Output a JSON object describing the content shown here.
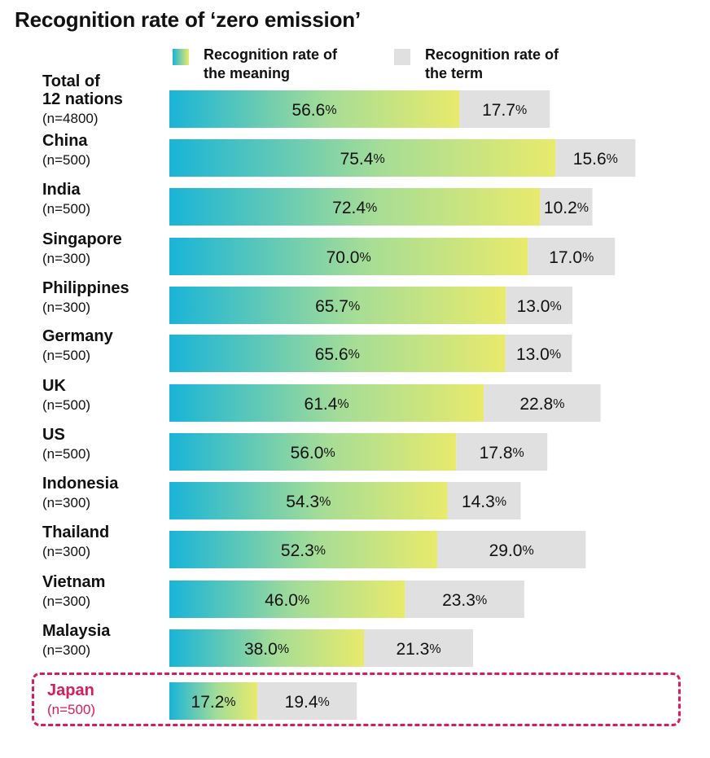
{
  "chart_data": {
    "type": "bar",
    "orientation": "horizontal",
    "stacked": true,
    "title": "Recognition rate of ‘zero emission’",
    "xlabel": "",
    "ylabel": "",
    "xlim": [
      0,
      100
    ],
    "grid": false,
    "legend_position": "top",
    "categories": [
      {
        "name": "Total of 12 nations",
        "lines": [
          "Total of",
          "12 nations"
        ],
        "n": "(n=4800)"
      },
      {
        "name": "China",
        "lines": [
          "China"
        ],
        "n": "(n=500)"
      },
      {
        "name": "India",
        "lines": [
          "India"
        ],
        "n": "(n=500)"
      },
      {
        "name": "Singapore",
        "lines": [
          "Singapore"
        ],
        "n": "(n=300)"
      },
      {
        "name": "Philippines",
        "lines": [
          "Philippines"
        ],
        "n": "(n=300)"
      },
      {
        "name": "Germany",
        "lines": [
          "Germany"
        ],
        "n": "(n=500)"
      },
      {
        "name": "UK",
        "lines": [
          "UK"
        ],
        "n": "(n=500)"
      },
      {
        "name": "US",
        "lines": [
          "US"
        ],
        "n": "(n=500)"
      },
      {
        "name": "Indonesia",
        "lines": [
          "Indonesia"
        ],
        "n": "(n=300)"
      },
      {
        "name": "Thailand",
        "lines": [
          "Thailand"
        ],
        "n": "(n=300)"
      },
      {
        "name": "Vietnam",
        "lines": [
          "Vietnam"
        ],
        "n": "(n=300)"
      },
      {
        "name": "Malaysia",
        "lines": [
          "Malaysia"
        ],
        "n": "(n=300)"
      },
      {
        "name": "Japan",
        "lines": [
          "Japan"
        ],
        "n": "(n=500)",
        "highlighted": true
      }
    ],
    "series": [
      {
        "name": "Recognition rate of the meaning",
        "legend_lines": [
          "Recognition rate of",
          "the meaning"
        ],
        "values": [
          56.6,
          75.4,
          72.4,
          70.0,
          65.7,
          65.6,
          61.4,
          56.0,
          54.3,
          52.3,
          46.0,
          38.0,
          17.2
        ],
        "labels": [
          "56.6",
          "75.4",
          "72.4",
          "70.0",
          "65.7",
          "65.6",
          "61.4",
          "56.0",
          "54.3",
          "52.3",
          "46.0",
          "38.0",
          "17.2"
        ],
        "color_start": "#19b4d8",
        "color_end": "#e8ea6c"
      },
      {
        "name": "Recognition rate of the term",
        "legend_lines": [
          "Recognition rate of",
          "the term"
        ],
        "values": [
          17.7,
          15.6,
          10.2,
          17.0,
          13.0,
          13.0,
          22.8,
          17.8,
          14.3,
          29.0,
          23.3,
          21.3,
          19.4
        ],
        "labels": [
          "17.7",
          "15.6",
          "10.2",
          "17.0",
          "13.0",
          "13.0",
          "22.8",
          "17.8",
          "14.3",
          "29.0",
          "23.3",
          "21.3",
          "19.4"
        ],
        "color": "#e0e0e0"
      }
    ],
    "value_suffix": "%",
    "highlight_color": "#d51e5a"
  }
}
